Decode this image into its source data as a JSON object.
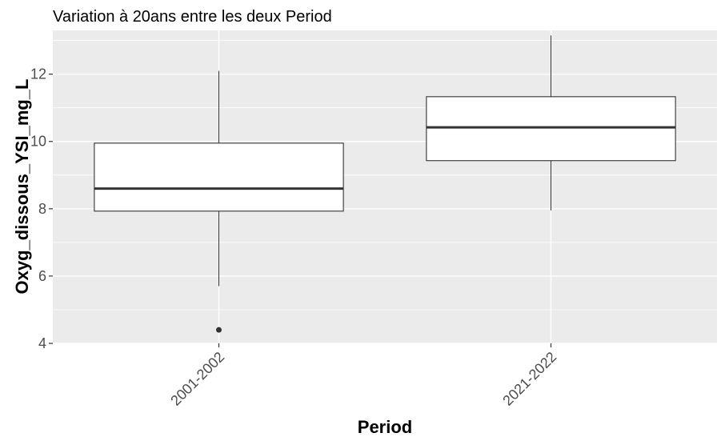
{
  "chart_data": {
    "type": "boxplot",
    "title": "Variation à 20ans entre les deux Period",
    "xlabel": "Period",
    "ylabel": "Oxyg_dissous_YSI_mg_L",
    "categories": [
      "2001-2002",
      "2021-2022"
    ],
    "ylim": [
      4,
      13.3
    ],
    "yticks": [
      4,
      6,
      8,
      10,
      12
    ],
    "boxes": [
      {
        "category": "2001-2002",
        "whisker_low": 5.7,
        "q1": 7.93,
        "median": 8.6,
        "q3": 9.95,
        "whisker_high": 12.1,
        "outliers": [
          4.4
        ]
      },
      {
        "category": "2021-2022",
        "whisker_low": 7.95,
        "q1": 9.43,
        "median": 10.42,
        "q3": 11.33,
        "whisker_high": 13.15,
        "outliers": []
      }
    ],
    "grid": true,
    "colors": {
      "panel": "#ebebeb",
      "grid": "#ffffff",
      "box_fill": "#ffffff",
      "box_line": "#333333"
    }
  }
}
